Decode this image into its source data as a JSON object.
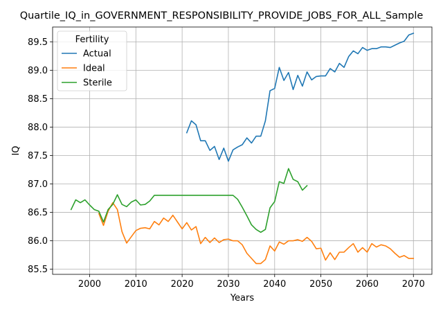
{
  "chart_data": {
    "type": "line",
    "title": "Quartile_IQ_in_GOVERNMENT_RESPONSIBILITY_PROVIDE_JOBS_FOR_ALL_Sample",
    "xlabel": "Years",
    "ylabel": "IQ",
    "xlim": [
      1992,
      2074
    ],
    "ylim": [
      85.41,
      89.76
    ],
    "xticks": [
      2000,
      2010,
      2020,
      2030,
      2040,
      2050,
      2060,
      2070
    ],
    "xtick_labels": [
      "2000",
      "2010",
      "2020",
      "2030",
      "2040",
      "2050",
      "2060",
      "2070"
    ],
    "yticks": [
      85.5,
      86.0,
      86.5,
      87.0,
      87.5,
      88.0,
      88.5,
      89.0,
      89.5
    ],
    "ytick_labels": [
      "85.5",
      "86.0",
      "86.5",
      "87.0",
      "87.5",
      "88.0",
      "88.5",
      "89.0",
      "89.5"
    ],
    "grid": true,
    "legend": {
      "title": "Fertility",
      "placement": "upper-left"
    },
    "series": [
      {
        "name": "Actual",
        "color": "#1f77b4",
        "x": [
          2021,
          2022,
          2023,
          2024,
          2025,
          2026,
          2027,
          2028,
          2029,
          2030,
          2031,
          2032,
          2033,
          2034,
          2035,
          2036,
          2037,
          2038,
          2039,
          2040,
          2041,
          2042,
          2043,
          2044,
          2045,
          2046,
          2047,
          2048,
          2049,
          2050,
          2051,
          2052,
          2053,
          2054,
          2055,
          2056,
          2057,
          2058,
          2059,
          2060,
          2061,
          2062,
          2063,
          2064,
          2065,
          2066,
          2067,
          2068,
          2069,
          2070
        ],
        "y": [
          87.9,
          88.11,
          88.04,
          87.76,
          87.76,
          87.59,
          87.66,
          87.43,
          87.63,
          87.4,
          87.6,
          87.65,
          87.69,
          87.81,
          87.72,
          87.84,
          87.84,
          88.11,
          88.64,
          88.68,
          89.05,
          88.82,
          88.96,
          88.66,
          88.91,
          88.72,
          88.97,
          88.83,
          88.89,
          88.9,
          88.9,
          89.03,
          88.97,
          89.12,
          89.05,
          89.24,
          89.34,
          89.29,
          89.4,
          89.35,
          89.38,
          89.38,
          89.41,
          89.41,
          89.4,
          89.44,
          89.48,
          89.51,
          89.62,
          89.65
        ]
      },
      {
        "name": "Ideal",
        "color": "#ff7f0e",
        "x": [
          2002,
          2003,
          2004,
          2005,
          2006,
          2007,
          2008,
          2009,
          2010,
          2011,
          2012,
          2013,
          2014,
          2015,
          2016,
          2017,
          2018,
          2019,
          2020,
          2021,
          2022,
          2023,
          2024,
          2025,
          2026,
          2027,
          2028,
          2029,
          2030,
          2031,
          2032,
          2033,
          2034,
          2035,
          2036,
          2037,
          2038,
          2039,
          2040,
          2041,
          2042,
          2043,
          2044,
          2045,
          2046,
          2047,
          2048,
          2049,
          2050,
          2051,
          2052,
          2053,
          2054,
          2055,
          2056,
          2057,
          2058,
          2059,
          2060,
          2061,
          2062,
          2063,
          2064,
          2065,
          2066,
          2067,
          2068,
          2069,
          2070
        ],
        "y": [
          86.48,
          86.27,
          86.52,
          86.67,
          86.55,
          86.16,
          85.96,
          86.07,
          86.18,
          86.22,
          86.23,
          86.21,
          86.34,
          86.28,
          86.4,
          86.34,
          86.45,
          86.33,
          86.21,
          86.32,
          86.19,
          86.25,
          85.95,
          86.06,
          85.97,
          86.05,
          85.97,
          86.02,
          86.03,
          86.0,
          86.0,
          85.93,
          85.78,
          85.69,
          85.6,
          85.6,
          85.67,
          85.91,
          85.82,
          85.98,
          85.94,
          86.0,
          86.0,
          86.02,
          85.99,
          86.06,
          85.99,
          85.86,
          85.87,
          85.66,
          85.79,
          85.67,
          85.8,
          85.8,
          85.88,
          85.95,
          85.8,
          85.88,
          85.8,
          85.95,
          85.89,
          85.93,
          85.91,
          85.86,
          85.78,
          85.71,
          85.74,
          85.69,
          85.69
        ]
      },
      {
        "name": "Sterile",
        "color": "#2ca02c",
        "x": [
          1996,
          1997,
          1998,
          1999,
          2000,
          2001,
          2002,
          2003,
          2004,
          2005,
          2006,
          2007,
          2008,
          2009,
          2010,
          2011,
          2012,
          2013,
          2014,
          2015,
          2016,
          2017,
          2018,
          2019,
          2020,
          2021,
          2022,
          2023,
          2024,
          2025,
          2026,
          2027,
          2028,
          2029,
          2030,
          2031,
          2032,
          2033,
          2034,
          2035,
          2036,
          2037,
          2038,
          2039,
          2040,
          2041,
          2042,
          2043,
          2044,
          2045,
          2046,
          2047
        ],
        "y": [
          86.55,
          86.72,
          86.67,
          86.72,
          86.63,
          86.55,
          86.52,
          86.33,
          86.55,
          86.64,
          86.81,
          86.64,
          86.6,
          86.68,
          86.72,
          86.63,
          86.64,
          86.7,
          86.8,
          86.8,
          86.8,
          86.8,
          86.8,
          86.8,
          86.8,
          86.8,
          86.8,
          86.8,
          86.8,
          86.8,
          86.8,
          86.8,
          86.8,
          86.8,
          86.8,
          86.8,
          86.73,
          86.59,
          86.44,
          86.28,
          86.2,
          86.15,
          86.2,
          86.58,
          86.69,
          87.04,
          87.01,
          87.27,
          87.08,
          87.04,
          86.89,
          86.97
        ]
      }
    ]
  }
}
